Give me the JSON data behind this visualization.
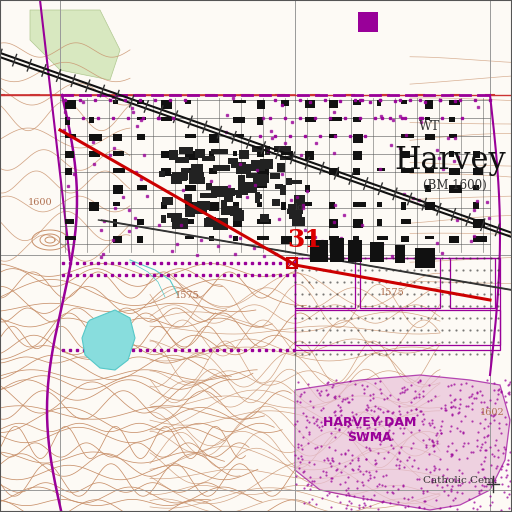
{
  "map_bg": "#fdfaf5",
  "city_name": "Harvey",
  "city_subtitle": "(BM 1600)",
  "wt_label": "WT",
  "number_label": "31",
  "harvey_dam_label": "HARVEY DAM\nSWMA",
  "catholic_cem_label": "Catholic Cem.",
  "topo_line_color": "#c8906a",
  "topo_line_color2": "#b07050",
  "road_color": "#cc0000",
  "purple_color": "#990099",
  "purple_light": "#dd88dd",
  "black_color": "#1a1a1a",
  "gray_color": "#888888",
  "cyan_color": "#55c8c8",
  "cyan_fill": "#88dddd",
  "green_fill": "#d4e8c0",
  "red_line": "#cc2222",
  "section_line_color": "#aaaaaa"
}
